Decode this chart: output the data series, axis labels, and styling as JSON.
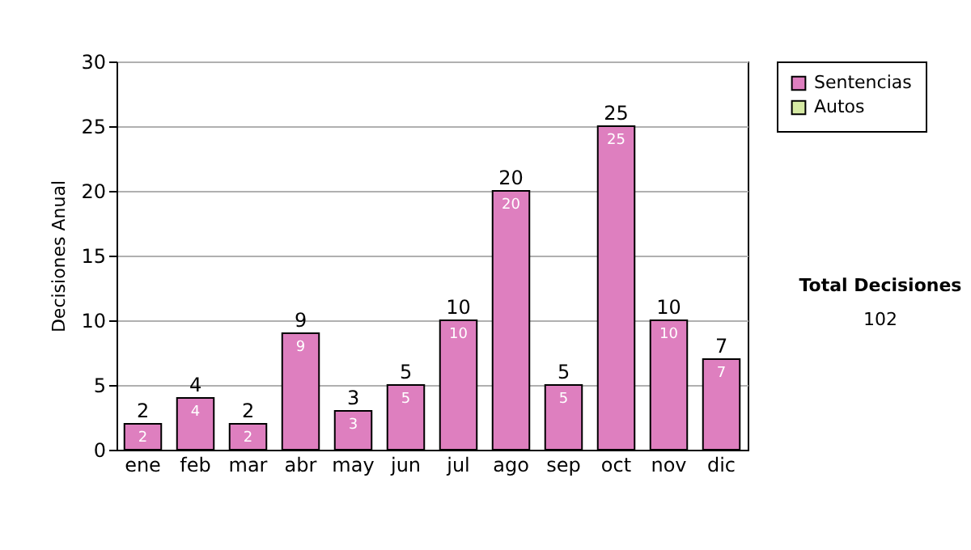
{
  "chart_data": {
    "type": "bar",
    "ylabel": "Decisiones Anual",
    "categories": [
      "ene",
      "feb",
      "mar",
      "abr",
      "may",
      "jun",
      "jul",
      "ago",
      "sep",
      "oct",
      "nov",
      "dic"
    ],
    "series": [
      {
        "name": "Sentencias",
        "color": "#de7fbf",
        "values": [
          2,
          4,
          2,
          9,
          3,
          5,
          10,
          20,
          5,
          25,
          10,
          7
        ]
      },
      {
        "name": "Autos",
        "color": "#d6eaa4",
        "values": [
          null,
          null,
          null,
          null,
          null,
          null,
          null,
          null,
          null,
          null,
          null,
          null
        ]
      }
    ],
    "stacked": true,
    "data_labels": true,
    "totals": [
      "2",
      "4",
      "2",
      "9",
      "3",
      "5",
      "10",
      "20",
      "5",
      "25",
      "10",
      "7"
    ],
    "ylim": [
      0,
      30
    ],
    "yticks": [
      0,
      5,
      10,
      15,
      20,
      25,
      30
    ],
    "grid": "y",
    "legend": "right",
    "annotations": [
      "Total Decisiones",
      "102"
    ]
  }
}
